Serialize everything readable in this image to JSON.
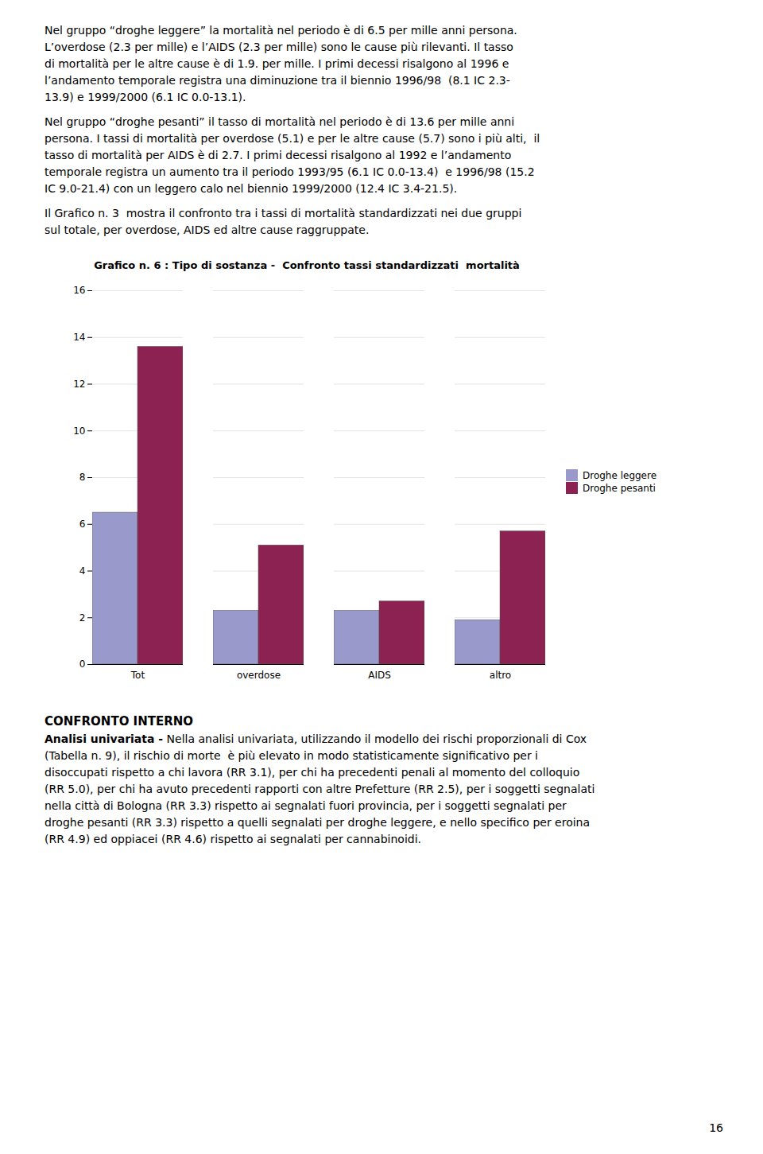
{
  "chart_data": {
    "type": "bar",
    "title": "Grafico n. 6 : Tipo di sostanza -  Confronto tassi standardizzati  mortalità",
    "categories": [
      "Tot",
      "overdose",
      "AIDS",
      "altro"
    ],
    "series": [
      {
        "name": "Droghe leggere",
        "color": "#9999cc",
        "values": [
          6.5,
          2.3,
          2.3,
          1.9
        ]
      },
      {
        "name": "Droghe pesanti",
        "color": "#8b2252",
        "values": [
          13.6,
          5.1,
          2.7,
          5.7
        ]
      }
    ],
    "ylim": [
      0,
      16
    ],
    "yticks": [
      0,
      2,
      4,
      6,
      8,
      10,
      12,
      14,
      16
    ],
    "grid": true,
    "legend": "right"
  },
  "page_texts": [
    "Nel gruppo “droghe leggere” la mortalità nel periodo è di 6.5 per mille anni persona.",
    "L’overdose (2.3 per mille) e l’AIDS (2.3 per mille) sono le cause più rilevanti. Il tasso",
    "di mortalità per le altre cause è di 1.9. per mille. I primi decessi risalgono al 1996 e",
    "l’andamento temporale registra una diminuzione tra il biennio 1996/98  (8.1 IC 2.3-",
    "13.9) e 1999/2000 (6.1 IC 0.0-13.1).",
    "Nel gruppo “droghe pesanti” il tasso di mortalità nel periodo è di 13.6 per mille anni",
    "persona. I tassi di mortalità per overdose (5.1) e per le altre cause (5.7) sono i più alti,  il",
    "tasso di mortalità per AIDS è di 2.7. I primi decessi risalgono al 1992 e l’andamento",
    "temporale registra un aumento tra il periodo 1993/95 (6.1 IC 0.0-13.4)  e 1996/98 (15.2",
    "IC 9.0-21.4) con un leggero calo nel biennio 1999/2000 (12.4 IC 3.4-21.5).",
    "Il Grafico n. 3  mostra il confronto tra i tassi di mortalità standardizzati nei due gruppi",
    "sul totale, per overdose, AIDS ed altre cause raggruppate."
  ],
  "bottom_texts": [
    [
      "CONFRONTO INTERNO"
    ],
    [
      "Analisi univariata -",
      " Nella analisi univariata, utilizzando il modello dei rischi proporzionali di Cox"
    ],
    [
      "(Tabella n. 9), il rischio di morte  è più elevato in modo statisticamente significativo per i"
    ],
    [
      "disoccupati rispetto a chi lavora (RR 3.1), per chi ha precedenti penali al momento del colloquio"
    ],
    [
      "(RR 5.0), per chi ha avuto precedenti rapporti con altre Prefetture (RR 2.5), per i soggetti segnalati"
    ],
    [
      "nella città di Bologna (RR 3.3) rispetto ai segnalati fuori provincia, per i soggetti segnalati per"
    ],
    [
      "droghe pesanti (RR 3.3) rispetto a quelli segnalati per droghe leggere, e nello specifico per eroina"
    ],
    [
      "(RR 4.9) ed oppiacei (RR 4.6) rispetto ai segnalati per cannabinoidi."
    ]
  ],
  "page_number": "16"
}
